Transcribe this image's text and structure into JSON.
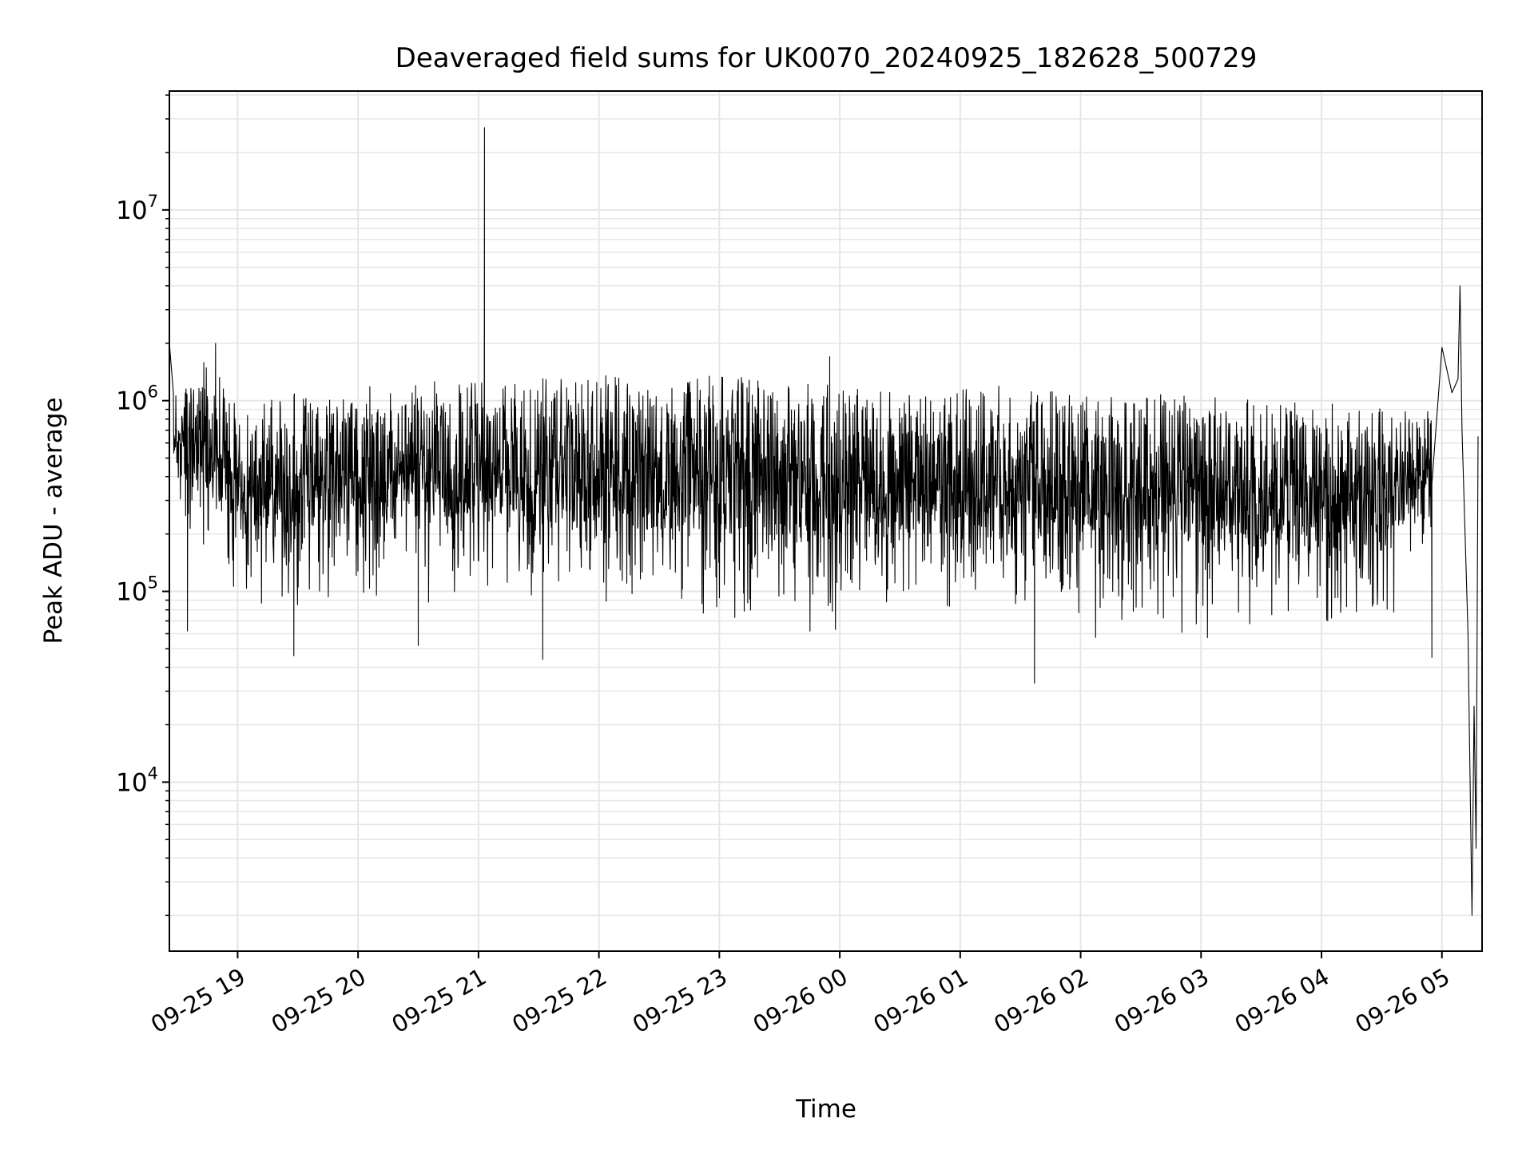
{
  "chart_data": {
    "type": "line",
    "title": "Deaveraged field sums for UK0070_20240925_182628_500729",
    "xlabel": "Time",
    "ylabel": "Peak ADU - average",
    "y_scale": "log",
    "ylim": [
      1300,
      42000000
    ],
    "xlim": [
      "2024-09-25 18:26",
      "2024-09-26 05:20"
    ],
    "grid": true,
    "line_color": "#000000",
    "grid_color": "#e6e6e6",
    "x_ticks": [
      {
        "t": "2024-09-25 19:00",
        "label": "09-25 19"
      },
      {
        "t": "2024-09-25 20:00",
        "label": "09-25 20"
      },
      {
        "t": "2024-09-25 21:00",
        "label": "09-25 21"
      },
      {
        "t": "2024-09-25 22:00",
        "label": "09-25 22"
      },
      {
        "t": "2024-09-25 23:00",
        "label": "09-25 23"
      },
      {
        "t": "2024-09-26 00:00",
        "label": "09-26 00"
      },
      {
        "t": "2024-09-26 01:00",
        "label": "09-26 01"
      },
      {
        "t": "2024-09-26 02:00",
        "label": "09-26 02"
      },
      {
        "t": "2024-09-26 03:00",
        "label": "09-26 03"
      },
      {
        "t": "2024-09-26 04:00",
        "label": "09-26 04"
      },
      {
        "t": "2024-09-26 05:00",
        "label": "09-26 05"
      }
    ],
    "y_ticks": [
      {
        "value": 10000,
        "base": "10",
        "exp": "4"
      },
      {
        "value": 100000,
        "base": "10",
        "exp": "5"
      },
      {
        "value": 1000000,
        "base": "10",
        "exp": "6"
      },
      {
        "value": 10000000,
        "base": "10",
        "exp": "7"
      }
    ],
    "series": [
      {
        "name": "",
        "band_min": [
          {
            "t": "2024-09-25 18:28",
            "y": 250000
          },
          {
            "t": "2024-09-25 18:45",
            "y": 130000
          },
          {
            "t": "2024-09-25 19:00",
            "y": 80000
          },
          {
            "t": "2024-09-25 19:30",
            "y": 70000
          },
          {
            "t": "2024-09-25 20:30",
            "y": 80000
          },
          {
            "t": "2024-09-25 21:30",
            "y": 70000
          },
          {
            "t": "2024-09-25 22:30",
            "y": 60000
          },
          {
            "t": "2024-09-25 23:30",
            "y": 55000
          },
          {
            "t": "2024-09-26 00:30",
            "y": 55000
          },
          {
            "t": "2024-09-26 01:30",
            "y": 55000
          },
          {
            "t": "2024-09-26 02:30",
            "y": 55000
          },
          {
            "t": "2024-09-26 03:30",
            "y": 55000
          },
          {
            "t": "2024-09-26 04:30",
            "y": 55000
          },
          {
            "t": "2024-09-26 04:55",
            "y": 150000
          }
        ],
        "band_max": [
          {
            "t": "2024-09-25 18:28",
            "y": 1100000
          },
          {
            "t": "2024-09-25 18:45",
            "y": 1700000
          },
          {
            "t": "2024-09-25 19:00",
            "y": 1000000
          },
          {
            "t": "2024-09-25 19:30",
            "y": 1100000
          },
          {
            "t": "2024-09-25 20:30",
            "y": 1300000
          },
          {
            "t": "2024-09-25 21:30",
            "y": 1300000
          },
          {
            "t": "2024-09-25 22:30",
            "y": 1400000
          },
          {
            "t": "2024-09-25 23:30",
            "y": 1300000
          },
          {
            "t": "2024-09-26 00:30",
            "y": 1200000
          },
          {
            "t": "2024-09-26 01:30",
            "y": 1200000
          },
          {
            "t": "2024-09-26 02:30",
            "y": 1100000
          },
          {
            "t": "2024-09-26 03:30",
            "y": 1000000
          },
          {
            "t": "2024-09-26 04:30",
            "y": 950000
          },
          {
            "t": "2024-09-26 04:55",
            "y": 900000
          }
        ],
        "spikes": [
          {
            "t": "2024-09-25 18:26",
            "y": 2000000
          },
          {
            "t": "2024-09-25 18:35",
            "y": 62000
          },
          {
            "t": "2024-09-25 18:49",
            "y": 2000000
          },
          {
            "t": "2024-09-25 19:28",
            "y": 46000
          },
          {
            "t": "2024-09-25 20:30",
            "y": 52000
          },
          {
            "t": "2024-09-25 21:03",
            "y": 27000000
          },
          {
            "t": "2024-09-25 21:32",
            "y": 44000
          },
          {
            "t": "2024-09-25 23:55",
            "y": 1700000
          },
          {
            "t": "2024-09-26 01:37",
            "y": 33000
          },
          {
            "t": "2024-09-26 04:55",
            "y": 45000
          }
        ],
        "tail": [
          {
            "t": "2024-09-26 05:00",
            "y": 1900000
          },
          {
            "t": "2024-09-26 05:05",
            "y": 1100000
          },
          {
            "t": "2024-09-26 05:08",
            "y": 1300000
          },
          {
            "t": "2024-09-26 05:09",
            "y": 4000000
          },
          {
            "t": "2024-09-26 05:10",
            "y": 700000
          },
          {
            "t": "2024-09-26 05:13",
            "y": 60000
          },
          {
            "t": "2024-09-26 05:15",
            "y": 2000
          },
          {
            "t": "2024-09-26 05:16",
            "y": 25000
          },
          {
            "t": "2024-09-26 05:17",
            "y": 4500
          },
          {
            "t": "2024-09-26 05:18",
            "y": 650000
          }
        ]
      }
    ]
  }
}
